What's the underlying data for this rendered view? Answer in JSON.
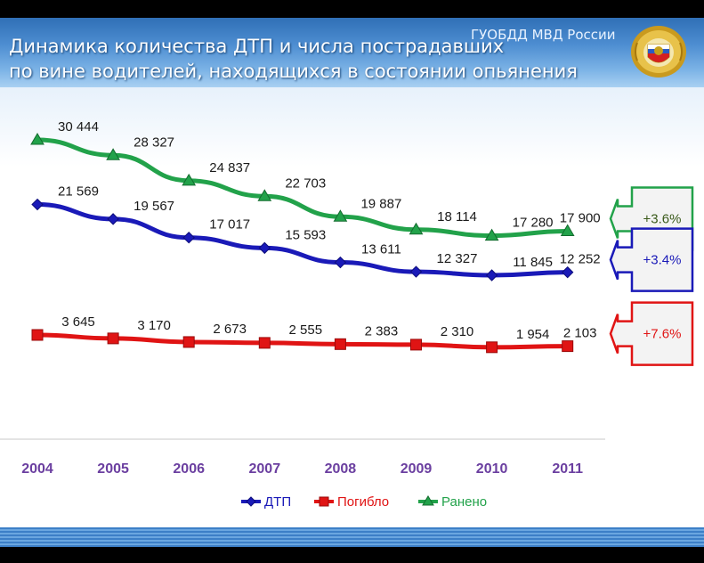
{
  "header": {
    "title_line1": "Динамика количества ДТП и числа пострадавших",
    "title_line2": "по вине водителей, находящихся в состоянии опьянения",
    "org": "ГУОБДД МВД России",
    "emblem_icon": "police-emblem-icon"
  },
  "colors": {
    "dtp": "#1a1ab8",
    "pogiblo": "#e01414",
    "raneno": "#22a24a",
    "category": "#6b3fa0"
  },
  "chart_data": {
    "type": "line",
    "categories": [
      "2004",
      "2005",
      "2006",
      "2007",
      "2008",
      "2009",
      "2010",
      "2011"
    ],
    "series": [
      {
        "name": "ДТП",
        "color": "#1a1ab8",
        "marker": "diamond",
        "values": [
          21569,
          19567,
          17017,
          15593,
          13611,
          12327,
          11845,
          12252
        ],
        "labels": [
          "21 569",
          "19 567",
          "17 017",
          "15 593",
          "13 611",
          "12 327",
          "11 845",
          "12 252"
        ]
      },
      {
        "name": "Погибло",
        "color": "#e01414",
        "marker": "square",
        "values": [
          3645,
          3170,
          2673,
          2555,
          2383,
          2310,
          1954,
          2103
        ],
        "labels": [
          "3 645",
          "3 170",
          "2 673",
          "2 555",
          "2 383",
          "2 310",
          "1 954",
          "2 103"
        ]
      },
      {
        "name": "Ранено",
        "color": "#22a24a",
        "marker": "triangle",
        "values": [
          30444,
          28327,
          24837,
          22703,
          19887,
          18114,
          17280,
          17900
        ],
        "labels": [
          "30 444",
          "28 327",
          "24 837",
          "22 703",
          "19 887",
          "18 114",
          "17 280",
          "17 900"
        ]
      }
    ],
    "grid": false,
    "legend_position": "bottom",
    "callouts": [
      {
        "series": "Ранено",
        "text": "+3.6%",
        "color": "#22a24a",
        "text_color": "#3a5a1a"
      },
      {
        "series": "ДТП",
        "text": "+3.4%",
        "color": "#1a1ab8",
        "text_color": "#1a1ab8"
      },
      {
        "series": "Погибло",
        "text": "+7.6%",
        "color": "#e01414",
        "text_color": "#e01414"
      }
    ]
  }
}
